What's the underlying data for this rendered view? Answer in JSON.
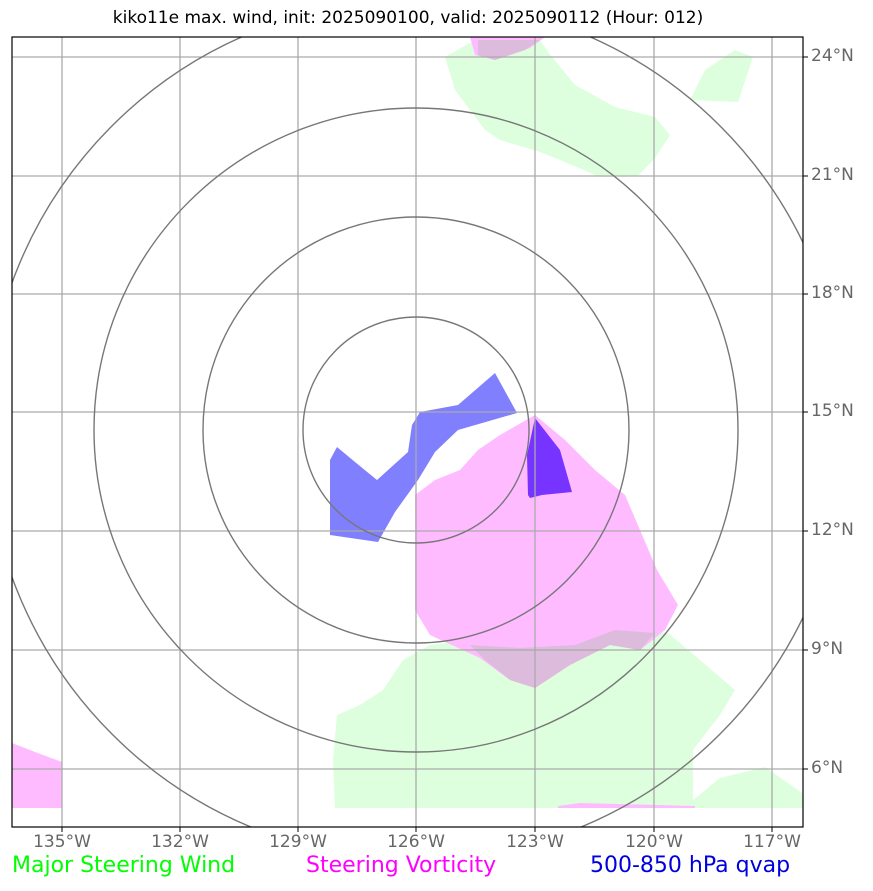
{
  "title": "kiko11e max. wind, init: 2025090100, valid: 2025090112 (Hour: 012)",
  "lat_labels": [
    "24°N",
    "21°N",
    "18°N",
    "15°N",
    "12°N",
    "9°N",
    "6°N"
  ],
  "lon_labels": [
    "135°W",
    "132°W",
    "129°W",
    "126°W",
    "123°W",
    "120°W",
    "117°W"
  ],
  "legend": {
    "wind": "Major Steering Wind",
    "vorticity": "Steering Vorticity",
    "qvap": "500-850 hPa qvap"
  },
  "colors": {
    "wind": "#00ff00",
    "wind_fill": "#ddffdd",
    "vorticity": "#ff00ff",
    "vorticity_fill": "#ffbbff",
    "qvap": "#0000dd",
    "qvap_fill": "#8080ff",
    "qvap_dark": "#7733ff"
  }
}
